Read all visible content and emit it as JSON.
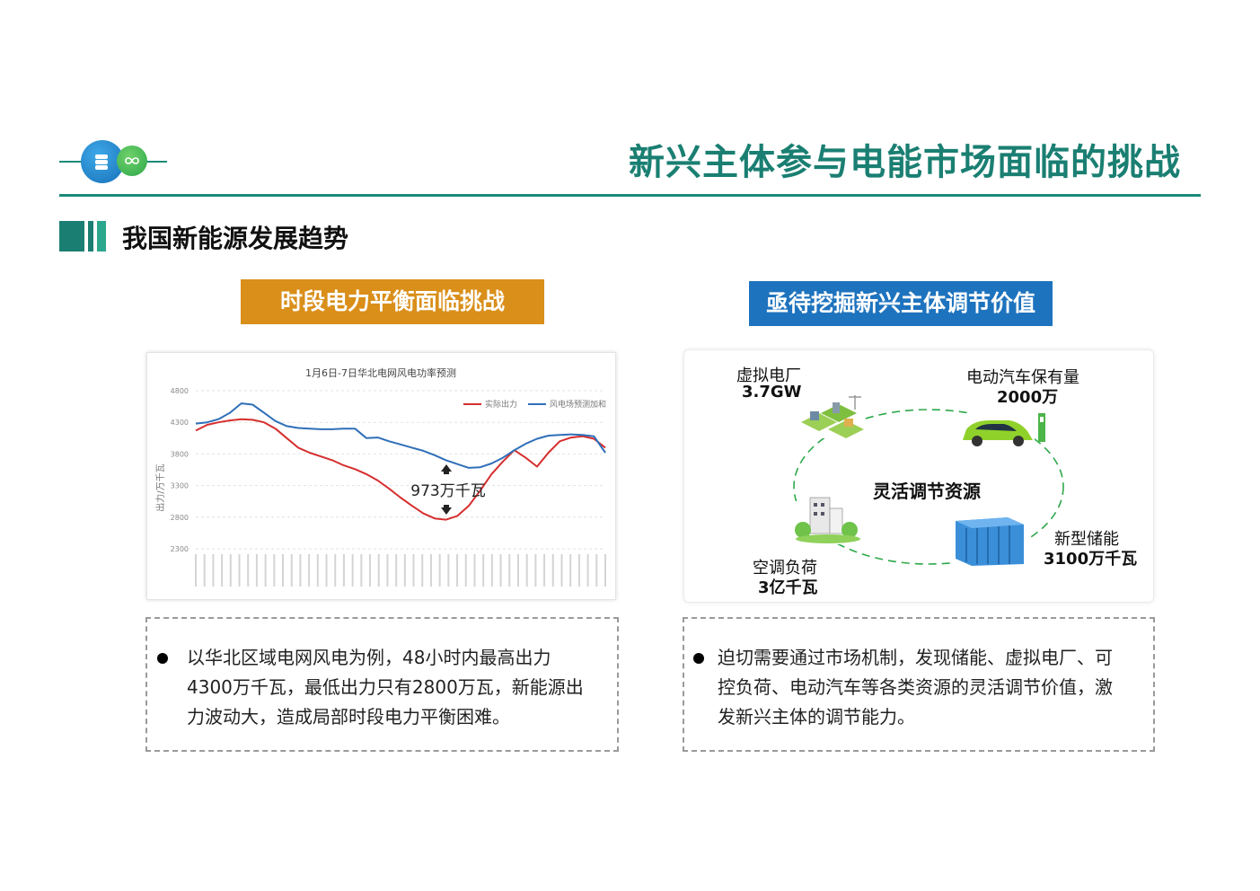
{
  "header": {
    "title": "新兴主体参与电能市场面临的挑战"
  },
  "section": {
    "title": "我国新能源发展趋势"
  },
  "left": {
    "badge": "时段电力平衡面临挑战",
    "badge_color": "#d98f1a",
    "chart_data": {
      "type": "line",
      "title": "1月6日-7日华北电网风电功率预测",
      "ylabel": "出力/万千瓦",
      "yticks": [
        4800,
        4300,
        3800,
        3300,
        2800,
        2300
      ],
      "ylim": [
        2300,
        4800
      ],
      "grid": true,
      "legend_position": "top-right",
      "series": [
        {
          "name": "实际出力",
          "color": "#d62e2e",
          "values": [
            4170,
            4260,
            4300,
            4330,
            4350,
            4340,
            4300,
            4200,
            4050,
            3900,
            3820,
            3760,
            3700,
            3620,
            3560,
            3480,
            3380,
            3250,
            3110,
            2980,
            2860,
            2780,
            2760,
            2820,
            2980,
            3220,
            3480,
            3680,
            3860,
            3740,
            3600,
            3820,
            4000,
            4060,
            4080,
            4040,
            3900
          ]
        },
        {
          "name": "风电场预测加和",
          "color": "#2f6fb8",
          "values": [
            4280,
            4300,
            4350,
            4450,
            4600,
            4580,
            4450,
            4320,
            4240,
            4210,
            4200,
            4190,
            4190,
            4200,
            4200,
            4050,
            4060,
            4000,
            3950,
            3900,
            3850,
            3780,
            3700,
            3640,
            3580,
            3590,
            3650,
            3740,
            3860,
            3960,
            4040,
            4090,
            4100,
            4110,
            4100,
            4080,
            3820
          ]
        }
      ],
      "annotation": "973万千瓦"
    },
    "text": "以华北区域电网风电为例，48小时内最高出力4300万千瓦，最低出力只有2800万瓦，新能源出力波动大，造成局部时段电力平衡困难。",
    "text_lines": [
      "以华北区域电网风电为例，48小时内最高出力",
      "4300万千瓦，最低出力只有2800万瓦，新能源出",
      "力波动大，造成局部时段电力平衡困难。"
    ]
  },
  "right": {
    "badge": "亟待挖掘新兴主体调节价值",
    "badge_color": "#1e73be",
    "center_label": "灵活调节资源",
    "items": [
      {
        "label": "虚拟电厂",
        "value": "3.7GW",
        "icon": "virtual-power-plant-icon"
      },
      {
        "label": "电动汽车保有量",
        "value": "2000万",
        "icon": "electric-car-icon"
      },
      {
        "label": "新型储能",
        "value": "3100万千瓦",
        "icon": "energy-storage-icon"
      },
      {
        "label": "空调负荷",
        "value": "3亿千瓦",
        "icon": "building-icon"
      }
    ],
    "text_lines": [
      "迫切需要通过市场机制，发现储能、虚拟电厂、可",
      "控负荷、电动汽车等各类资源的灵活调节价值，激",
      "发新兴主体的调节能力。"
    ]
  }
}
